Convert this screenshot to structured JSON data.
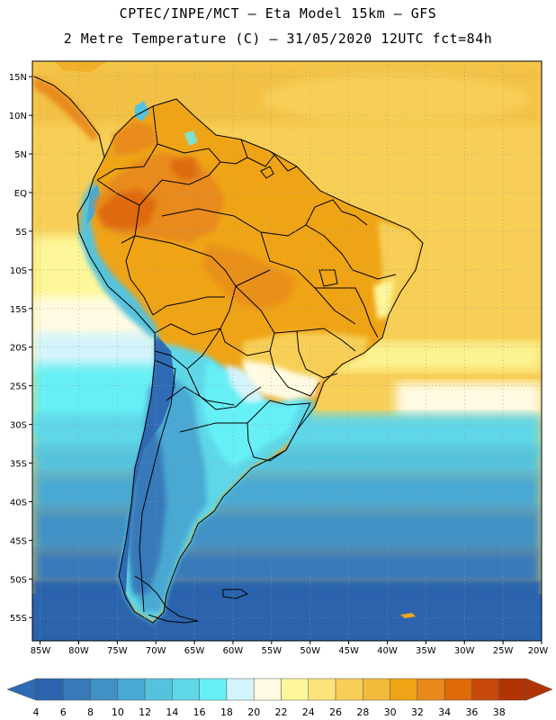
{
  "header": {
    "line1": "CPTEC/INPE/MCT –  Eta Model 15km – GFS",
    "line2": "2 Metre Temperature (C) – 31/05/2020 12UTC fct=84h"
  },
  "map": {
    "variable": "2 Metre Temperature",
    "units": "C",
    "lon_range": [
      -86,
      -20
    ],
    "lat_range": [
      17,
      -58
    ],
    "lat_labels": [
      {
        "lat": 15,
        "label": "15N"
      },
      {
        "lat": 10,
        "label": "10N"
      },
      {
        "lat": 5,
        "label": "5N"
      },
      {
        "lat": 0,
        "label": "EQ"
      },
      {
        "lat": -5,
        "label": "5S"
      },
      {
        "lat": -10,
        "label": "10S"
      },
      {
        "lat": -15,
        "label": "15S"
      },
      {
        "lat": -20,
        "label": "20S"
      },
      {
        "lat": -25,
        "label": "25S"
      },
      {
        "lat": -30,
        "label": "30S"
      },
      {
        "lat": -35,
        "label": "35S"
      },
      {
        "lat": -40,
        "label": "40S"
      },
      {
        "lat": -45,
        "label": "45S"
      },
      {
        "lat": -50,
        "label": "50S"
      },
      {
        "lat": -55,
        "label": "55S"
      }
    ],
    "lon_labels": [
      {
        "lon": -85,
        "label": "85W"
      },
      {
        "lon": -80,
        "label": "80W"
      },
      {
        "lon": -75,
        "label": "75W"
      },
      {
        "lon": -70,
        "label": "70W"
      },
      {
        "lon": -65,
        "label": "65W"
      },
      {
        "lon": -60,
        "label": "60W"
      },
      {
        "lon": -55,
        "label": "55W"
      },
      {
        "lon": -50,
        "label": "50W"
      },
      {
        "lon": -45,
        "label": "45W"
      },
      {
        "lon": -40,
        "label": "40W"
      },
      {
        "lon": -35,
        "label": "35W"
      },
      {
        "lon": -30,
        "label": "30W"
      },
      {
        "lon": -25,
        "label": "25W"
      },
      {
        "lon": -20,
        "label": "20W"
      }
    ]
  },
  "colorbar": {
    "labels": [
      "4",
      "6",
      "8",
      "10",
      "12",
      "14",
      "16",
      "18",
      "20",
      "22",
      "24",
      "26",
      "28",
      "30",
      "32",
      "34",
      "36",
      "38"
    ],
    "colors": [
      "#2b64ad",
      "#3779b9",
      "#3f91c6",
      "#48a9d3",
      "#55c3de",
      "#5fd7e8",
      "#66f0f6",
      "#d3f4fc",
      "#fffbe3",
      "#fdf79a",
      "#fce37a",
      "#f7cf56",
      "#f1bb3c",
      "#efa416",
      "#e88a1b",
      "#de6a08",
      "#c7480a",
      "#b23406"
    ],
    "under_color": "#2f6ab4",
    "over_color": "#b23406"
  }
}
